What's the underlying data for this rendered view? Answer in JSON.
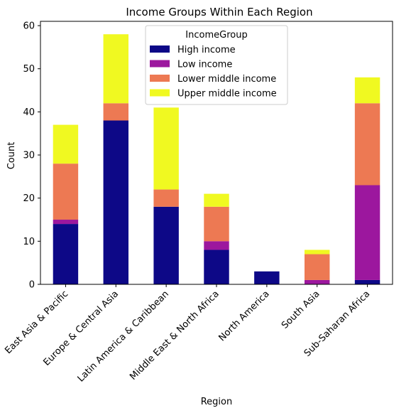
{
  "chart_data": {
    "type": "bar",
    "stacked": true,
    "title": "Income Groups Within Each Region",
    "xlabel": "Region",
    "ylabel": "Count",
    "ylim": [
      0,
      61
    ],
    "yticks": [
      "0",
      "10",
      "20",
      "30",
      "40",
      "50",
      "60"
    ],
    "categories": [
      "East Asia & Pacific",
      "Europe & Central Asia",
      "Latin America & Caribbean",
      "Middle East & North Africa",
      "North America",
      "South Asia",
      "Sub-Saharan Africa"
    ],
    "legend": {
      "title": "IncomeGroup",
      "placement": "top-center"
    },
    "grid": false,
    "series": [
      {
        "name": "High income",
        "color": "#0d0887",
        "values": [
          14,
          38,
          18,
          8,
          3,
          0,
          1
        ]
      },
      {
        "name": "Low income",
        "color": "#9c179e",
        "values": [
          1,
          0,
          0,
          2,
          0,
          1,
          22
        ]
      },
      {
        "name": "Lower middle income",
        "color": "#ed7953",
        "values": [
          13,
          4,
          4,
          8,
          0,
          6,
          19
        ]
      },
      {
        "name": "Upper middle income",
        "color": "#f0f921",
        "values": [
          9,
          16,
          19,
          3,
          0,
          1,
          6
        ]
      }
    ]
  }
}
